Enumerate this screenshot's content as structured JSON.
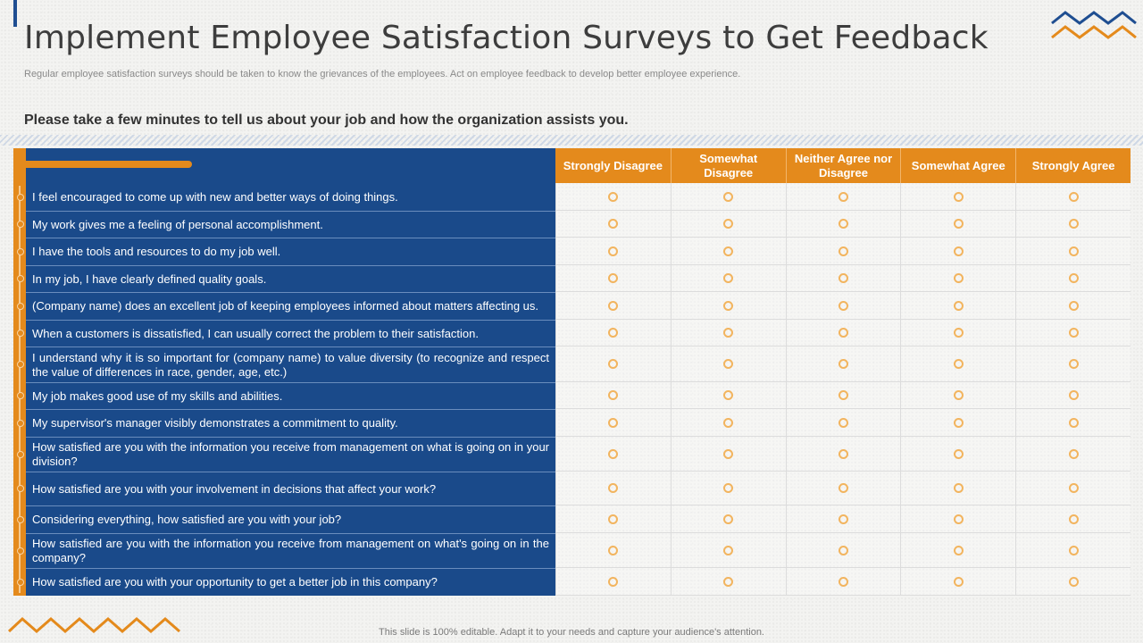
{
  "header": {
    "title": "Implement Employee Satisfaction Surveys to Get Feedback",
    "subtitle": "Regular employee satisfaction surveys should be taken to know the grievances of the employees. Act on employee feedback to develop better employee experience.",
    "prompt": "Please take a few minutes to tell us about your job and how the organization assists you."
  },
  "columns": [
    "Strongly Disagree",
    "Somewhat Disagree",
    "Neither Agree nor Disagree",
    "Somewhat Agree",
    "Strongly Agree"
  ],
  "questions": [
    "I feel encouraged to come up with new and better ways of doing things.",
    "My work gives me a feeling of personal accomplishment.",
    "I have the tools and resources to do my job well.",
    "In my job, I have clearly defined quality goals.",
    "(Company name) does an excellent job of keeping employees informed about matters affecting us.",
    "When a customers is dissatisfied, I can usually correct the problem to their satisfaction.",
    "I understand why it is so important for (company name) to value diversity (to recognize and respect the value of differences in race, gender, age, etc.)",
    "My job makes good use of my skills and abilities.",
    "My supervisor's manager visibly demonstrates a commitment to quality.",
    "How satisfied are you with the information you receive from management on what is going on in your division?",
    "How satisfied are you with your involvement in decisions that affect your work?",
    "Considering everything, how satisfied are you with your job?",
    "How satisfied are you with the information you receive from management on what's going on in the company?",
    "How satisfied are you with your opportunity to get a better job in this company?"
  ],
  "footer": "This slide is 100% editable. Adapt it to your needs and capture your audience's attention.",
  "colors": {
    "navy": "#1a4a8a",
    "orange": "#e48a1c",
    "radio": "#f2b45e"
  },
  "icons": {
    "top_right": "zigzag-decoration-icon",
    "bottom_left": "zigzag-decoration-icon",
    "option": "radio-circle-icon"
  }
}
